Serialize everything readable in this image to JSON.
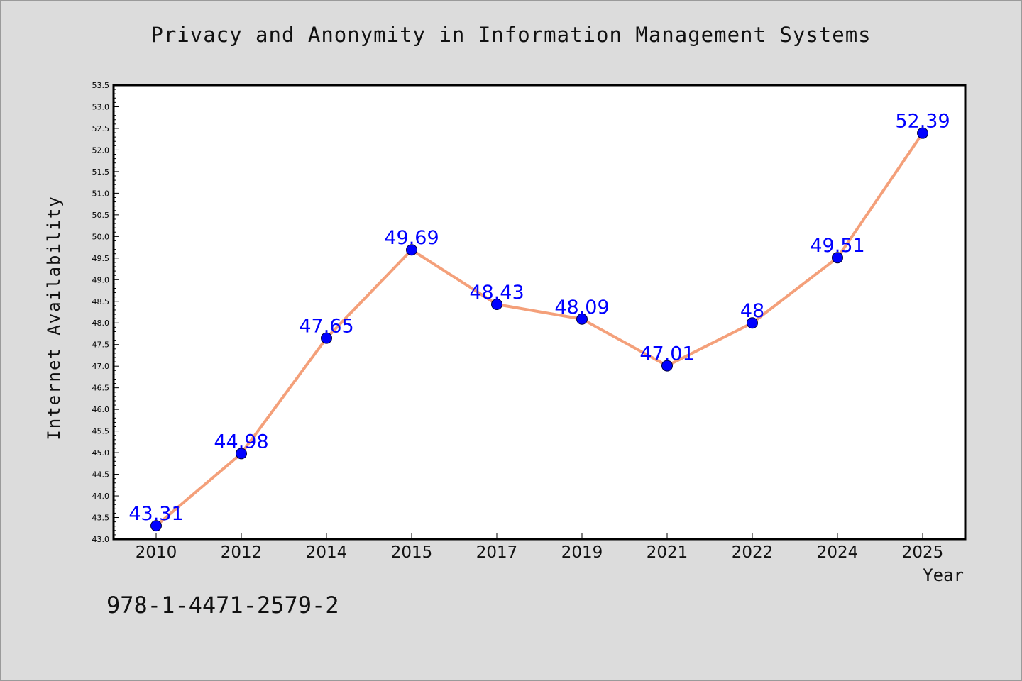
{
  "chart_data": {
    "type": "line",
    "title": "Privacy and Anonymity in Information Management Systems",
    "xlabel": "Year",
    "ylabel": "Internet Availability",
    "categories": [
      "2010",
      "2012",
      "2014",
      "2015",
      "2017",
      "2019",
      "2021",
      "2022",
      "2024",
      "2025"
    ],
    "series": [
      {
        "values": [
          43.31,
          44.98,
          47.65,
          49.69,
          48.43,
          48.09,
          47.01,
          48,
          49.51,
          52.39
        ],
        "labels": [
          "43.31",
          "44.98",
          "47.65",
          "49.69",
          "48.43",
          "48.09",
          "47.01",
          "48",
          "49.51",
          "52.39"
        ]
      }
    ],
    "ylim": [
      43.0,
      53.5
    ],
    "ytick_step": 0.5,
    "grid": false,
    "line_color": "#f4a07a",
    "marker_color": "#0000ff",
    "label_color": "#0000ff"
  },
  "footer": {
    "isbn": "978-1-4471-2579-2"
  }
}
